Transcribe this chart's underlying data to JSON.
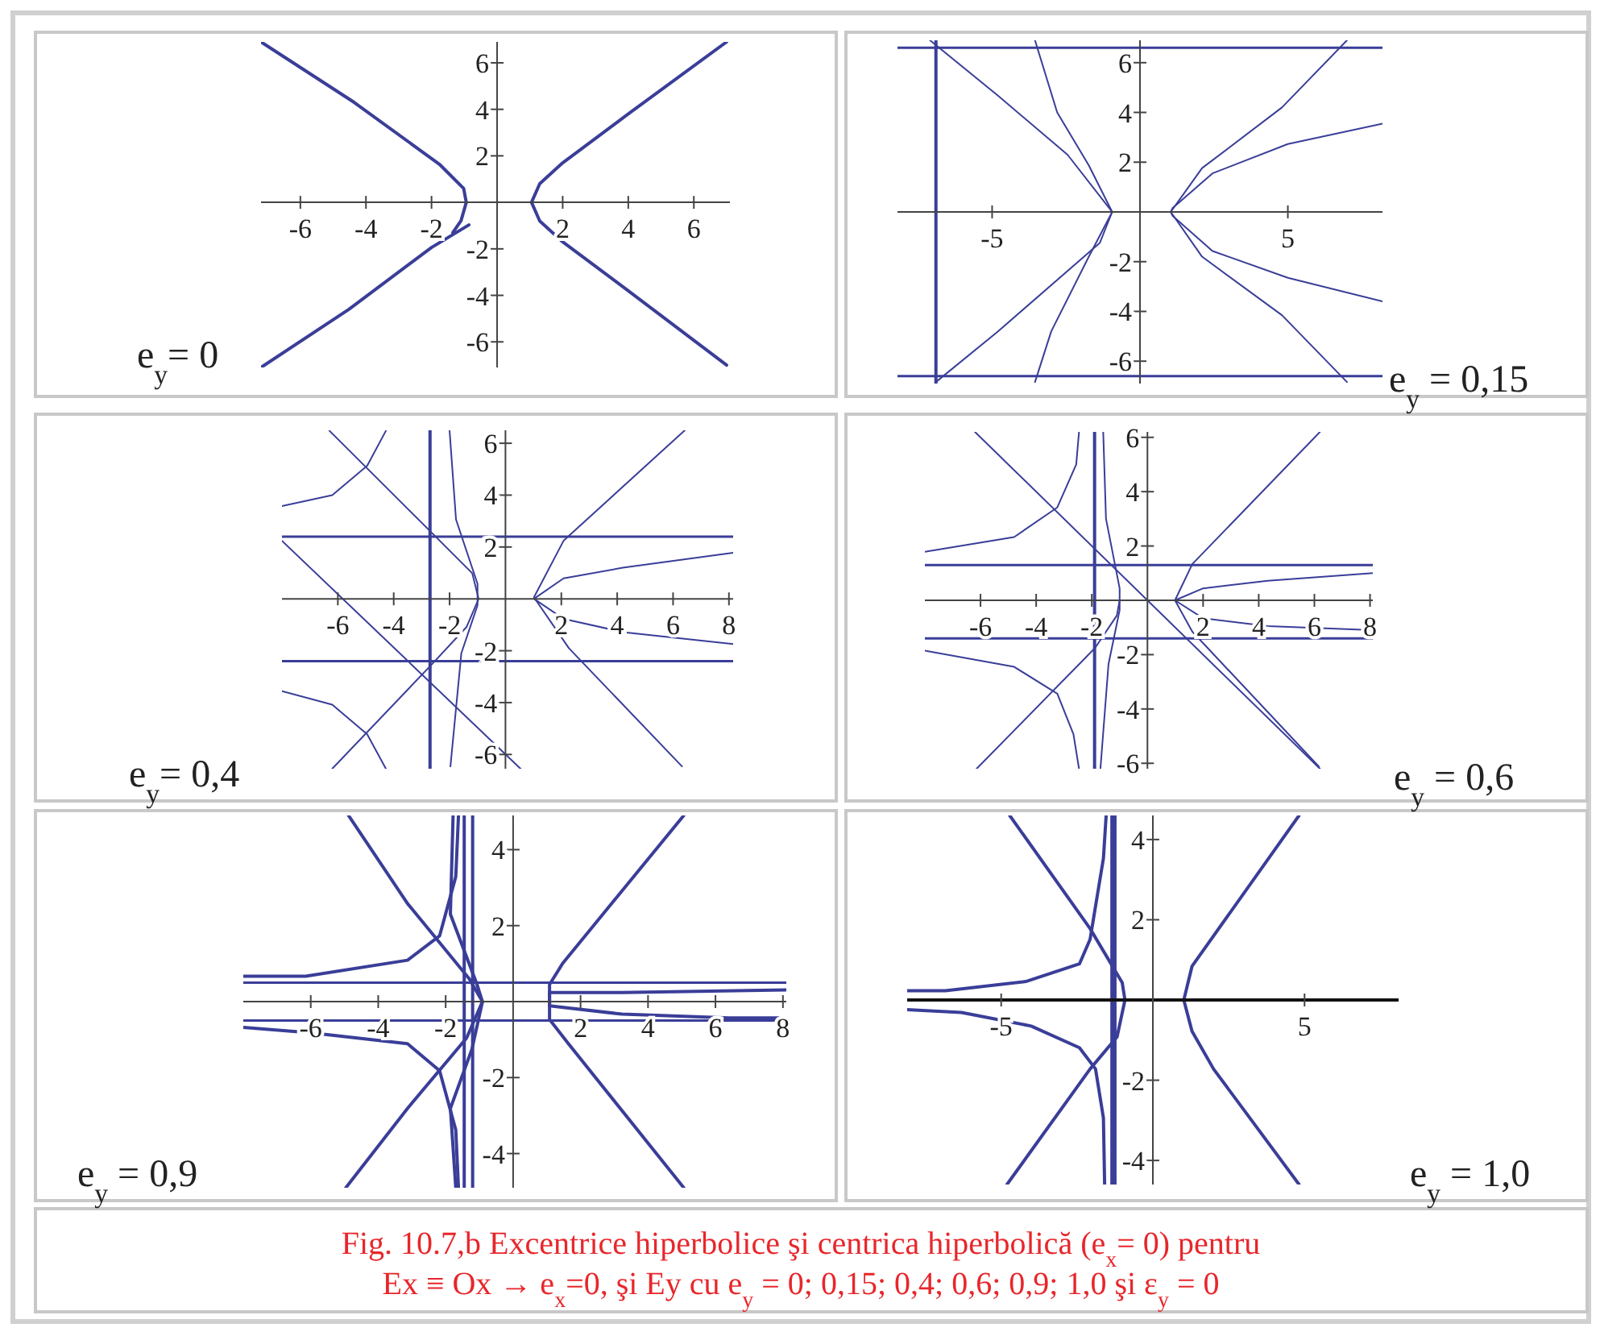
{
  "chart_data": [
    {
      "type": "line",
      "title": "e$_{y}$= 0",
      "xlim": [
        -7.2,
        7.1
      ],
      "ylim": [
        -7.1,
        6.9
      ],
      "xticks": [
        -6,
        -4,
        -2,
        2,
        4,
        6
      ],
      "yticks": [
        -6,
        -4,
        -2,
        2,
        4,
        6
      ],
      "series": [
        {
          "color": "#3a3e98",
          "x": [
            7,
            4,
            2,
            1.3,
            1.05,
            1.3,
            2,
            4,
            7
          ],
          "values": [
            6.9,
            3.8,
            1.7,
            0.8,
            0,
            -0.8,
            -1.7,
            -3.8,
            -7
          ]
        },
        {
          "color": "#3a3e98",
          "x": [
            -7.2,
            -4.36,
            -1.76,
            -1.02,
            -0.94,
            -1.1,
            -1.35
          ],
          "values": [
            6.9,
            4.3,
            1.64,
            0.6,
            0,
            -0.79,
            -1.3
          ]
        },
        {
          "color": "#3a3e98",
          "x": [
            -0.86,
            -2,
            -4.52,
            -7.2
          ],
          "values": [
            -0.97,
            -1.94,
            -4.6,
            -7.1
          ]
        }
      ]
    },
    {
      "type": "line",
      "title": "e$_{y}$ = 0,15",
      "xlim": [
        -8.2,
        8.2
      ],
      "ylim": [
        -6.9,
        6.9
      ],
      "xticks": [
        -5,
        5
      ],
      "yticks": [
        -6,
        -4,
        -2,
        2,
        4,
        6
      ],
      "ref_lines": [
        {
          "axis": "y",
          "value": 6.6,
          "color": "#3a3e98"
        },
        {
          "axis": "y",
          "value": -6.6,
          "color": "#3a3e98"
        },
        {
          "axis": "x",
          "value": -6.9,
          "color": "#3a3e98"
        }
      ],
      "series": [
        {
          "color": "#3a3e98",
          "x": [
            7,
            4.8,
            2.1,
            1.04,
            2.1,
            4.8,
            7
          ],
          "values": [
            6.9,
            4.2,
            1.76,
            0,
            -1.8,
            -4.15,
            -6.84
          ]
        },
        {
          "color": "#3a3e98",
          "x": [
            8.2,
            5,
            2.45,
            1.1,
            1.04,
            1.1,
            2.45,
            5,
            8.2
          ],
          "values": [
            3.55,
            2.73,
            1.55,
            0.15,
            0,
            -0.15,
            -1.57,
            -2.65,
            -3.6
          ]
        },
        {
          "color": "#3a3e98",
          "x": [
            -7.1,
            -4.8,
            -2.45,
            -0.94,
            -1.36,
            -4.8,
            -6.9
          ],
          "values": [
            6.9,
            4.67,
            2.3,
            0,
            -1.25,
            -4.8,
            -6.84
          ]
        },
        {
          "color": "#3a3e98",
          "x": [
            -3.55,
            -2.8,
            -1.73,
            -0.94,
            -1.73,
            -3,
            -3.55
          ],
          "values": [
            6.9,
            4,
            1.87,
            0,
            -1.8,
            -4.8,
            -6.84
          ]
        }
      ]
    },
    {
      "type": "line",
      "title": "e$_{y}$= 0,4",
      "xlim": [
        -8,
        8.15
      ],
      "ylim": [
        -6.55,
        6.5
      ],
      "xticks": [
        -6,
        -4,
        -2,
        2,
        4,
        6,
        8
      ],
      "yticks": [
        -6,
        -4,
        -2,
        2,
        4,
        6
      ],
      "ref_lines": [
        {
          "axis": "y",
          "value": 2.4,
          "color": "#3a3e98"
        },
        {
          "axis": "y",
          "value": -2.4,
          "color": "#3a3e98"
        },
        {
          "axis": "x",
          "value": -2.7,
          "color": "#3a3e98"
        }
      ],
      "series": [
        {
          "color": "#3a3e98",
          "x": [
            6.42,
            2.08,
            1.02,
            2.27,
            6.32
          ],
          "values": [
            6.5,
            2.24,
            0.06,
            -1.9,
            -6.46
          ]
        },
        {
          "color": "#3a3e98",
          "x": [
            8.15,
            4.2,
            2.08,
            1.02,
            2.08,
            4.2,
            8.15
          ],
          "values": [
            1.78,
            1.2,
            0.79,
            0,
            -0.77,
            -1.28,
            -1.74
          ]
        },
        {
          "color": "#3a3e98",
          "x": [
            -2,
            -1.77,
            -1,
            -1,
            -1.58,
            -1.97
          ],
          "values": [
            6.48,
            3.06,
            0.58,
            -0.25,
            -2.1,
            -6.46
          ]
        },
        {
          "color": "#3a3e98",
          "x": [
            -6.3,
            -2.64,
            -1.19,
            -0.96,
            -1.39,
            -2.64,
            -6.2
          ],
          "values": [
            6.48,
            2.55,
            0.99,
            0,
            -1.08,
            -2.53,
            -6.55
          ]
        },
        {
          "color": "#3a3e98",
          "x": [
            -8,
            -6.2,
            -4.95,
            -4.28
          ],
          "values": [
            3.58,
            4,
            5.13,
            6.48
          ]
        },
        {
          "color": "#3a3e98",
          "x": [
            -8,
            -6.2,
            -4.95,
            -4.28
          ],
          "values": [
            -3.56,
            -4.08,
            -5.22,
            -6.55
          ]
        },
        {
          "color": "#3a3e98",
          "x": [
            -8,
            0.54
          ],
          "values": [
            2.24,
            -6.55
          ]
        }
      ]
    },
    {
      "type": "line",
      "title": "e$_{y}$ = 0,6",
      "xlim": [
        -8,
        8.1
      ],
      "ylim": [
        -6.2,
        6.2
      ],
      "xticks": [
        -6,
        -4,
        -2,
        2,
        4,
        6,
        8
      ],
      "yticks": [
        -6,
        -4,
        -2,
        2,
        4,
        6
      ],
      "ref_lines": [
        {
          "axis": "y",
          "value": 1.3,
          "color": "#3a3e98"
        },
        {
          "axis": "y",
          "value": -1.4,
          "color": "#3a3e98"
        },
        {
          "axis": "x",
          "value": -1.9,
          "color": "#3a3e98"
        }
      ],
      "series": [
        {
          "color": "#3a3e98",
          "x": [
            -6.2,
            6.2
          ],
          "values": [
            6.2,
            -6.2
          ]
        },
        {
          "color": "#3a3e98",
          "x": [
            6.2,
            1.61,
            0.99,
            1.61,
            6.16
          ],
          "values": [
            6.2,
            1.33,
            0,
            -1.15,
            -6.12
          ]
        },
        {
          "color": "#3a3e98",
          "x": [
            8.1,
            4.32,
            2,
            0.99,
            2,
            4.32,
            8.1
          ],
          "values": [
            1,
            0.72,
            0.44,
            0,
            -0.66,
            -0.95,
            -1.1
          ]
        },
        {
          "color": "#3a3e98",
          "x": [
            -1.59,
            -1.49,
            -1,
            -1,
            -1.4,
            -1.69
          ],
          "values": [
            6.2,
            3,
            0.44,
            -0.36,
            -2.35,
            -6.2
          ]
        },
        {
          "color": "#3a3e98",
          "x": [
            -6.14,
            -1.88,
            -1.1,
            -1
          ],
          "values": [
            -6.2,
            -1.75,
            -0.56,
            0
          ]
        },
        {
          "color": "#3a3e98",
          "x": [
            -8,
            -4.79,
            -3.24,
            -2.56,
            -2.46
          ],
          "values": [
            1.79,
            2.33,
            3.42,
            5,
            6.2
          ]
        },
        {
          "color": "#3a3e98",
          "x": [
            -8,
            -4.79,
            -3.24,
            -2.66,
            -2.46
          ],
          "values": [
            -1.85,
            -2.45,
            -3.44,
            -4.93,
            -6.2
          ]
        }
      ]
    },
    {
      "type": "line",
      "title": "e$_{y}$ = 0,9",
      "xlim": [
        -8,
        8.1
      ],
      "ylim": [
        -4.9,
        4.9
      ],
      "xticks": [
        -6,
        -4,
        -2,
        2,
        4,
        6,
        8
      ],
      "yticks": [
        -4,
        -2,
        2,
        4
      ],
      "ref_lines": [
        {
          "axis": "y",
          "value": 0.5,
          "color": "#3a3e98"
        },
        {
          "axis": "y",
          "value": -0.5,
          "color": "#3a3e98"
        },
        {
          "axis": "x",
          "value": -1.45,
          "color": "#3a3e98"
        },
        {
          "axis": "x",
          "value": -1.2,
          "color": "#3a3e98"
        }
      ],
      "series": [
        {
          "color": "#3a3e98",
          "x": [
            5.06,
            1.48,
            1.08,
            1.08,
            1.64,
            5.06
          ],
          "values": [
            4.9,
            1.02,
            0.45,
            -0.47,
            -1.11,
            -4.9
          ]
        },
        {
          "color": "#3a3e98",
          "x": [
            8.1,
            3.23,
            1.08,
            1.08,
            3.23,
            6.4,
            8.1
          ],
          "values": [
            0.31,
            0.24,
            0.24,
            -0.11,
            -0.33,
            -0.43,
            -0.43
          ]
        },
        {
          "color": "#3a3e98",
          "x": [
            -1.78,
            -1.86,
            -1.07,
            -0.91,
            -1.22,
            -1.86,
            -1.7
          ],
          "values": [
            4.9,
            2.3,
            0.45,
            0,
            -1.25,
            -2.81,
            -4.9
          ]
        },
        {
          "color": "#3a3e98",
          "x": [
            -4.88,
            -3.13,
            -1.3,
            -0.91,
            -1.38,
            -3.13,
            -4.96
          ],
          "values": [
            4.9,
            2.58,
            0.6,
            0,
            -0.96,
            -2.81,
            -4.9
          ]
        },
        {
          "color": "#3a3e98",
          "x": [
            -8,
            -6.15,
            -3.13,
            -2.18,
            -1.7,
            -1.62
          ],
          "values": [
            0.67,
            0.67,
            1.09,
            1.73,
            3.29,
            4.9
          ]
        },
        {
          "color": "#3a3e98",
          "x": [
            -8,
            -5.99,
            -3.13,
            -2.18,
            -1.7,
            -1.62
          ],
          "values": [
            -0.68,
            -0.82,
            -1.11,
            -1.82,
            -3.38,
            -4.9
          ]
        }
      ]
    },
    {
      "type": "line",
      "title": "e$_{y}$ = 1,0",
      "xlim": [
        -8.1,
        8.1
      ],
      "ylim": [
        -4.6,
        4.6
      ],
      "xticks": [
        -5,
        5
      ],
      "yticks": [
        -4,
        -2,
        2,
        4
      ],
      "ref_lines": [
        {
          "axis": "x",
          "value": -1.35,
          "color": "#3a3e98"
        },
        {
          "axis": "x",
          "value": -1.25,
          "color": "#3a3e98"
        }
      ],
      "series": [
        {
          "color": "#3a3e98",
          "x": [
            4.82,
            1.29,
            1.02,
            1.29,
            2,
            4.82
          ],
          "values": [
            4.6,
            0.84,
            0,
            -0.78,
            -1.72,
            -4.6
          ]
        },
        {
          "color": "#3a3e98",
          "x": [
            -4.72,
            -2.07,
            -1.01,
            -0.92,
            -1.18,
            -2.07,
            -4.81
          ],
          "values": [
            4.6,
            1.78,
            0.43,
            0,
            -0.92,
            -1.72,
            -4.6
          ]
        },
        {
          "color": "#3a3e98",
          "x": [
            -8.1,
            -6.84,
            -4.19,
            -2.42,
            -2.07,
            -1.63,
            -1.54
          ],
          "values": [
            0.23,
            0.23,
            0.46,
            0.9,
            1.51,
            3.53,
            4.6
          ]
        },
        {
          "color": "#3a3e98",
          "x": [
            -8.1,
            -6.31,
            -4.01,
            -2.42,
            -1.89,
            -1.63,
            -1.59
          ],
          "values": [
            -0.24,
            -0.31,
            -0.65,
            -1.19,
            -1.72,
            -2.94,
            -4.6
          ]
        }
      ],
      "annotations": [
        "Fig. 10.7,b Excentrice hiperbolice şi centrica hiperbolică (e$_{x}$= 0) pentru",
        "Ex ≡ Ox → e$_{x}$=0, şi Ey cu e$_{y}$ = 0;  0,15;  0,4;  0,6;  0,9;  1,0 şi ε$_{y}$ = 0"
      ]
    }
  ]
}
